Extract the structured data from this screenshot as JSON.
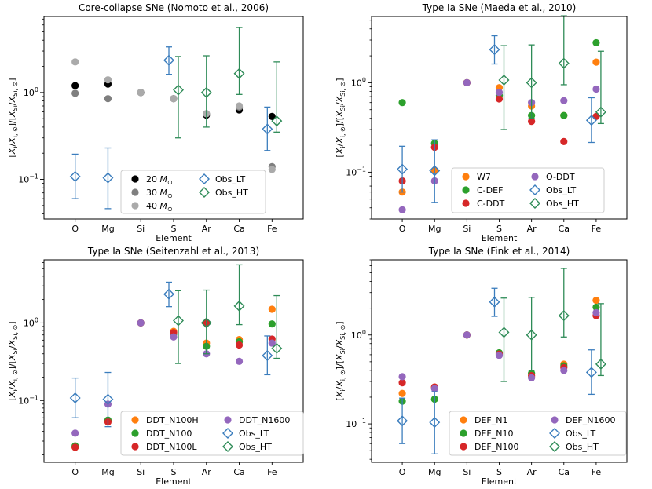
{
  "colors": {
    "obs_lt": "#3b7dbd",
    "obs_ht": "#2e8b57",
    "black": "#000000",
    "grey": "#7f7f7f",
    "lightgrey": "#aaaaaa",
    "orange": "#ff7f0e",
    "green": "#2ca02c",
    "red": "#d62728",
    "purple": "#9467bd"
  },
  "shared": {
    "categories": [
      "O",
      "Mg",
      "Si",
      "S",
      "Ar",
      "Ca",
      "Fe"
    ],
    "xlabel": "Element",
    "ylabel": "[X_i/X_i,⊙]/[X_Si/X_Si,⊙]",
    "yscale": "log",
    "ytick_labels": [
      "10^-1",
      "10^0"
    ],
    "observations": {
      "Obs_LT": {
        "x": [
          "O",
          "Mg",
          "S",
          "Fe"
        ],
        "values": [
          0.108,
          0.104,
          2.35,
          0.38
        ],
        "err_low": [
          0.06,
          0.046,
          1.62,
          0.215
        ],
        "err_high": [
          0.195,
          0.23,
          3.35,
          0.68
        ]
      },
      "Obs_HT": {
        "x": [
          "S",
          "Ar",
          "Ca",
          "Fe"
        ],
        "values": [
          1.07,
          1.0,
          1.65,
          0.47
        ],
        "err_low": [
          0.3,
          0.4,
          0.95,
          0.35
        ],
        "err_high": [
          2.6,
          2.65,
          5.6,
          2.25
        ]
      }
    }
  },
  "chart_data": [
    {
      "type": "scatter",
      "title": "Core-collapse SNe (Nomoto et al., 2006)",
      "ylim": [
        0.035,
        7.5
      ],
      "legend_position": "lower-right",
      "legend_columns": 2,
      "series": [
        {
          "name": "20 M⊙",
          "label_main": "20 ",
          "label_italic": "M",
          "label_sub": "⊙",
          "color": "#000000",
          "x": [
            "O",
            "Mg",
            "Si",
            "S",
            "Ar",
            "Ca",
            "Fe"
          ],
          "values": [
            1.2,
            1.25,
            1.0,
            0.85,
            0.55,
            0.63,
            0.53
          ]
        },
        {
          "name": "30 M⊙",
          "label_main": "30 ",
          "label_italic": "M",
          "label_sub": "⊙",
          "color": "#7f7f7f",
          "x": [
            "O",
            "Mg",
            "Si",
            "S",
            "Ar",
            "Ca",
            "Fe"
          ],
          "values": [
            0.98,
            0.85,
            1.0,
            0.85,
            0.57,
            0.68,
            0.14
          ]
        },
        {
          "name": "40 M⊙",
          "label_main": "40 ",
          "label_italic": "M",
          "label_sub": "⊙",
          "color": "#aaaaaa",
          "x": [
            "O",
            "Mg",
            "Si",
            "S",
            "Ar",
            "Ca",
            "Fe"
          ],
          "values": [
            2.25,
            1.4,
            1.0,
            0.85,
            0.57,
            0.7,
            0.13
          ]
        }
      ],
      "legend": [
        "20 M⊙",
        "30 M⊙",
        "40 M⊙",
        "Obs_LT",
        "Obs_HT"
      ]
    },
    {
      "type": "scatter",
      "title": "Type Ia SNe (Maeda et al., 2010)",
      "ylim": [
        0.03,
        5.5
      ],
      "legend_position": "lower-right",
      "legend_columns": 2,
      "series": [
        {
          "name": "W7",
          "color": "#ff7f0e",
          "x": [
            "O",
            "Mg",
            "Si",
            "S",
            "Ar",
            "Ca",
            "Fe"
          ],
          "values": [
            0.06,
            0.105,
            1.0,
            0.88,
            0.55,
            0.43,
            1.7
          ]
        },
        {
          "name": "C-DEF",
          "color": "#2ca02c",
          "x": [
            "O",
            "Mg",
            "Si",
            "S",
            "Ar",
            "Ca",
            "Fe"
          ],
          "values": [
            0.6,
            0.21,
            1.0,
            0.72,
            0.43,
            0.43,
            2.8
          ]
        },
        {
          "name": "C-DDT",
          "color": "#d62728",
          "x": [
            "O",
            "Mg",
            "Si",
            "S",
            "Ar",
            "Ca",
            "Fe"
          ],
          "values": [
            0.08,
            0.19,
            1.0,
            0.66,
            0.37,
            0.22,
            0.42
          ]
        },
        {
          "name": "O-DDT",
          "color": "#9467bd",
          "x": [
            "O",
            "Mg",
            "Si",
            "S",
            "Ar",
            "Ca",
            "Fe"
          ],
          "values": [
            0.038,
            0.08,
            1.0,
            0.78,
            0.6,
            0.63,
            0.85
          ]
        }
      ],
      "legend": [
        "W7",
        "C-DEF",
        "C-DDT",
        "O-DDT",
        "Obs_LT",
        "Obs_HT"
      ]
    },
    {
      "type": "scatter",
      "title": "Type Ia SNe (Seitenzahl et al., 2013)",
      "ylim": [
        0.016,
        6.5
      ],
      "legend_position": "lower-right",
      "legend_columns": 2,
      "series": [
        {
          "name": "DDT_N100H",
          "color": "#ff7f0e",
          "x": [
            "O",
            "Mg",
            "Si",
            "S",
            "Ar",
            "Ca",
            "Fe"
          ],
          "values": [
            0.025,
            0.055,
            1.0,
            0.78,
            0.55,
            0.61,
            1.5
          ]
        },
        {
          "name": "DDT_N100",
          "color": "#2ca02c",
          "x": [
            "O",
            "Mg",
            "Si",
            "S",
            "Ar",
            "Ca",
            "Fe"
          ],
          "values": [
            0.026,
            0.056,
            1.0,
            0.72,
            0.5,
            0.57,
            0.97
          ]
        },
        {
          "name": "DDT_N100L",
          "color": "#d62728",
          "x": [
            "O",
            "Mg",
            "Si",
            "S",
            "Ar",
            "Ca",
            "Fe"
          ],
          "values": [
            0.025,
            0.053,
            1.0,
            0.75,
            1.0,
            0.52,
            0.62
          ]
        },
        {
          "name": "DDT_N1600",
          "color": "#9467bd",
          "x": [
            "O",
            "Mg",
            "Si",
            "S",
            "Ar",
            "Ca",
            "Fe"
          ],
          "values": [
            0.038,
            0.09,
            1.0,
            0.66,
            0.4,
            0.32,
            0.55
          ]
        }
      ],
      "legend": [
        "DDT_N100H",
        "DDT_N100",
        "DDT_N100L",
        "DDT_N1600",
        "Obs_LT",
        "Obs_HT"
      ]
    },
    {
      "type": "scatter",
      "title": "Type Ia SNe (Fink et al., 2014)",
      "ylim": [
        0.037,
        7.0
      ],
      "legend_position": "lower-right",
      "legend_columns": 2,
      "series": [
        {
          "name": "DEF_N1",
          "color": "#ff7f0e",
          "x": [
            "O",
            "Mg",
            "Si",
            "S",
            "Ar",
            "Ca",
            "Fe"
          ],
          "values": [
            0.22,
            0.26,
            1.0,
            0.62,
            0.34,
            0.47,
            2.45
          ]
        },
        {
          "name": "DEF_N10",
          "color": "#2ca02c",
          "x": [
            "O",
            "Mg",
            "Si",
            "S",
            "Ar",
            "Ca",
            "Fe"
          ],
          "values": [
            0.18,
            0.19,
            1.0,
            0.63,
            0.37,
            0.45,
            2.05
          ]
        },
        {
          "name": "DEF_N100",
          "color": "#d62728",
          "x": [
            "O",
            "Mg",
            "Si",
            "S",
            "Ar",
            "Ca",
            "Fe"
          ],
          "values": [
            0.29,
            0.26,
            1.0,
            0.61,
            0.35,
            0.43,
            1.65
          ]
        },
        {
          "name": "DEF_N1600",
          "color": "#9467bd",
          "x": [
            "O",
            "Mg",
            "Si",
            "S",
            "Ar",
            "Ca",
            "Fe"
          ],
          "values": [
            0.34,
            0.25,
            1.0,
            0.59,
            0.33,
            0.4,
            1.78
          ]
        }
      ],
      "legend": [
        "DEF_N1",
        "DEF_N10",
        "DEF_N100",
        "DEF_N1600",
        "Obs_LT",
        "Obs_HT"
      ]
    }
  ]
}
